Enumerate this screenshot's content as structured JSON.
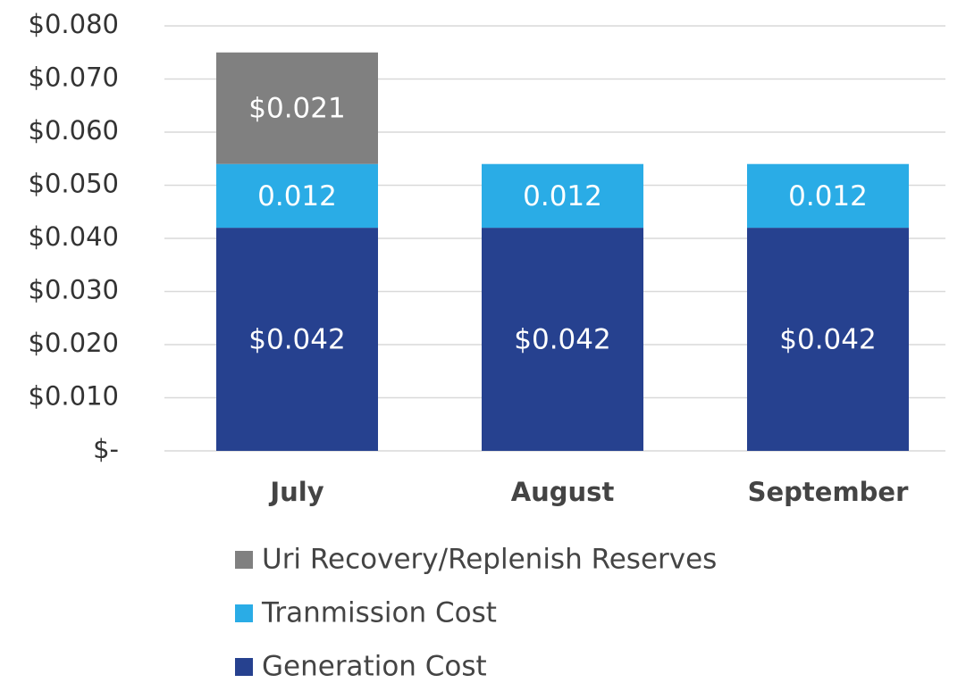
{
  "chart_data": {
    "type": "stacked_bar",
    "categories": [
      "July",
      "August",
      "September"
    ],
    "series": [
      {
        "name": "Generation Cost",
        "color": "#26418f",
        "values": [
          0.042,
          0.042,
          0.042
        ],
        "value_labels": [
          "$0.042",
          "$0.042",
          "$0.042"
        ]
      },
      {
        "name": "Tranmission Cost",
        "color": "#2aace6",
        "values": [
          0.012,
          0.012,
          0.012
        ],
        "value_labels": [
          "0.012",
          "0.012",
          "0.012"
        ]
      },
      {
        "name": "Uri Recovery/Replenish Reserves",
        "color": "#808080",
        "values": [
          0.021,
          null,
          null
        ],
        "value_labels": [
          "$0.021",
          null,
          null
        ]
      }
    ],
    "ylim": [
      0,
      0.08
    ],
    "yticks": [
      {
        "value": 0,
        "label": "$-"
      },
      {
        "value": 0.01,
        "label": "$0.010"
      },
      {
        "value": 0.02,
        "label": "$0.020"
      },
      {
        "value": 0.03,
        "label": "$0.030"
      },
      {
        "value": 0.04,
        "label": "$0.040"
      },
      {
        "value": 0.05,
        "label": "$0.050"
      },
      {
        "value": 0.06,
        "label": "$0.060"
      },
      {
        "value": 0.07,
        "label": "$0.070"
      },
      {
        "value": 0.08,
        "label": "$0.080"
      }
    ],
    "grid": true
  }
}
